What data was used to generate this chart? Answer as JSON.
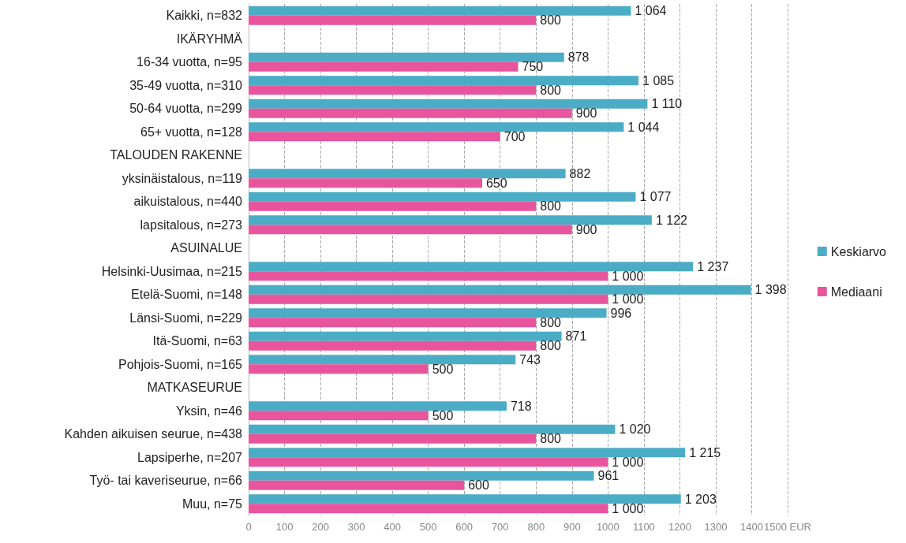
{
  "chart_data": {
    "type": "bar",
    "orientation": "horizontal",
    "categories": [
      "Kaikki, n=832",
      "IKÄRYHMÄ",
      "16-34 vuotta, n=95",
      "35-49 vuotta, n=310",
      "50-64 vuotta, n=299",
      "65+ vuotta, n=128",
      "TALOUDEN RAKENNE",
      "yksinäistalous, n=119",
      "aikuistalous, n=440",
      "lapsitalous, n=273",
      "ASUINALUE",
      "Helsinki-Uusimaa, n=215",
      "Etelä-Suomi, n=148",
      "Länsi-Suomi, n=229",
      "Itä-Suomi, n=63",
      "Pohjois-Suomi, n=165",
      "MATKASEURUE",
      "Yksin, n=46",
      "Kahden aikuisen seurue, n=438",
      "Lapsiperhe, n=207",
      "Työ- tai kaveriseurue, n=66",
      "Muu, n=75"
    ],
    "series": [
      {
        "name": "Keskiarvo",
        "color": "#4bacc6",
        "values": [
          1064,
          null,
          878,
          1085,
          1110,
          1044,
          null,
          882,
          1077,
          1122,
          null,
          1237,
          1398,
          996,
          871,
          743,
          null,
          718,
          1020,
          1215,
          961,
          1203
        ],
        "value_labels": [
          "1 064",
          null,
          "878",
          "1 085",
          "1 110",
          "1 044",
          null,
          "882",
          "1 077",
          "1 122",
          null,
          "1 237",
          "1 398",
          "996",
          "871",
          "743",
          null,
          "718",
          "1 020",
          "1 215",
          "961",
          "1 203"
        ]
      },
      {
        "name": "Mediaani",
        "color": "#e8559c",
        "values": [
          800,
          null,
          750,
          800,
          900,
          700,
          null,
          650,
          800,
          900,
          null,
          1000,
          1000,
          800,
          800,
          500,
          null,
          500,
          800,
          1000,
          600,
          1000
        ],
        "value_labels": [
          "800",
          null,
          "750",
          "800",
          "900",
          "700",
          null,
          "650",
          "800",
          "900",
          null,
          "1 000",
          "1 000",
          "800",
          "800",
          "500",
          null,
          "500",
          "800",
          "1 000",
          "600",
          "1 000"
        ]
      }
    ],
    "xlim": [
      0,
      1500
    ],
    "xticks": [
      0,
      100,
      200,
      300,
      400,
      500,
      600,
      700,
      800,
      900,
      1000,
      1100,
      1200,
      1300,
      {
        "value": 1400,
        "label": "1400"
      },
      {
        "value": 1500,
        "label": "1500 EUR"
      }
    ],
    "grid": "x",
    "legend": "right"
  }
}
